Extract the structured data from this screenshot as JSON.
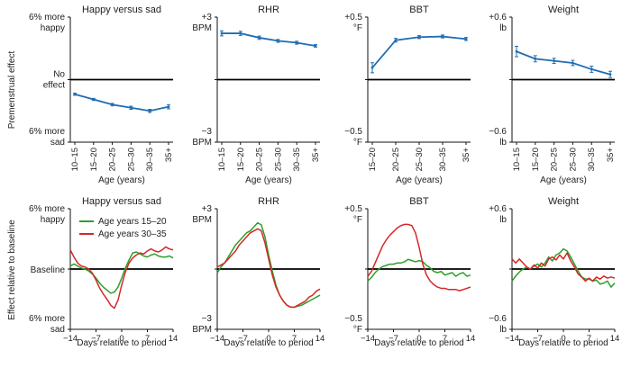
{
  "colors": {
    "line": "#1f6db3",
    "young": "#2ca02c",
    "old": "#d62728",
    "axis": "#111111",
    "baseline": "#000000"
  },
  "row_labels": {
    "top": "Premenstrual effect",
    "bottom": "Effect relative to baseline"
  },
  "chart_data": [
    {
      "id": "mood-age",
      "type": "line",
      "title": "Happy versus sad",
      "xlabel": "Age (years)",
      "categories": [
        "10–15",
        "15–20",
        "20–25",
        "25–30",
        "30–35",
        "35+"
      ],
      "values": [
        -1.4,
        -1.9,
        -2.4,
        -2.7,
        -3.0,
        -2.6
      ],
      "errors": [
        0.1,
        0.1,
        0.12,
        0.15,
        0.15,
        0.2
      ],
      "ylim": [
        -6,
        6
      ],
      "y_top": [
        "6% more",
        "happy"
      ],
      "y_mid": [
        "No",
        "effect"
      ],
      "y_bottom": [
        "6% more",
        "sad"
      ]
    },
    {
      "id": "rhr-age",
      "type": "line",
      "title": "RHR",
      "xlabel": "Age (years)",
      "categories": [
        "10–15",
        "15–20",
        "20–25",
        "25–30",
        "30–35",
        "35+"
      ],
      "values": [
        2.22,
        2.22,
        2.01,
        1.86,
        1.77,
        1.62
      ],
      "errors": [
        0.12,
        0.1,
        0.08,
        0.07,
        0.07,
        0.06
      ],
      "ylim": [
        -3,
        3
      ],
      "y_top": [
        "+3",
        "BPM"
      ],
      "y_bottom": [
        "−3",
        "BPM"
      ]
    },
    {
      "id": "bbt-age",
      "type": "line",
      "title": "BBT",
      "xlabel": "Age (years)",
      "categories": [
        "15–20",
        "20–25",
        "25–30",
        "30–35",
        "35+"
      ],
      "values": [
        0.095,
        0.315,
        0.34,
        0.345,
        0.325
      ],
      "errors": [
        0.04,
        0.015,
        0.012,
        0.012,
        0.012
      ],
      "ylim": [
        -0.5,
        0.5
      ],
      "y_top": [
        "+0.5",
        "°F"
      ],
      "y_bottom": [
        "−0.5",
        "°F"
      ]
    },
    {
      "id": "weight-age",
      "type": "line",
      "title": "Weight",
      "xlabel": "Age (years)",
      "categories": [
        "10–15",
        "15–20",
        "20–25",
        "25–30",
        "30–35",
        "35+"
      ],
      "values": [
        0.27,
        0.2,
        0.18,
        0.16,
        0.1,
        0.05
      ],
      "errors": [
        0.05,
        0.03,
        0.025,
        0.025,
        0.03,
        0.03
      ],
      "ylim": [
        -0.6,
        0.6
      ],
      "y_top": [
        "+0.6",
        "lb"
      ],
      "y_bottom": [
        "−0.6",
        "lb"
      ]
    },
    {
      "id": "mood-days",
      "type": "line",
      "title": "Happy versus sad",
      "xlabel": "Days relative to period",
      "x": [
        -14,
        -13,
        -12,
        -11,
        -10,
        -9,
        -8,
        -7,
        -6,
        -5,
        -4,
        -3,
        -2,
        -1,
        0,
        1,
        2,
        3,
        4,
        5,
        6,
        7,
        8,
        9,
        10,
        11,
        12,
        13,
        14
      ],
      "x_ticks": [
        -14,
        -7,
        0,
        7,
        14
      ],
      "x_tick_labels": [
        "−14",
        "−7",
        "0",
        "7",
        "14"
      ],
      "series": [
        {
          "name": "Age years 15–20",
          "key": "young",
          "values": [
            0.3,
            0.5,
            0.3,
            0.1,
            0.0,
            -0.2,
            -0.5,
            -0.9,
            -1.4,
            -1.8,
            -2.1,
            -2.4,
            -2.3,
            -1.8,
            -0.9,
            0.1,
            0.9,
            1.6,
            1.7,
            1.5,
            1.3,
            1.2,
            1.4,
            1.5,
            1.3,
            1.2,
            1.2,
            1.3,
            1.1
          ]
        },
        {
          "name": "Age years 30–35",
          "key": "old",
          "values": [
            1.9,
            1.2,
            0.6,
            0.3,
            0.2,
            0.0,
            -0.4,
            -1.1,
            -1.9,
            -2.5,
            -3.0,
            -3.6,
            -3.9,
            -3.1,
            -1.6,
            -0.3,
            0.6,
            1.1,
            1.4,
            1.6,
            1.5,
            1.8,
            2.0,
            1.8,
            1.7,
            1.9,
            2.2,
            2.0,
            1.9
          ]
        }
      ],
      "ylim": [
        -6,
        6
      ],
      "y_top": [
        "6% more",
        "happy"
      ],
      "y_mid": [
        "Baseline"
      ],
      "y_bottom": [
        "6% more",
        "sad"
      ],
      "legend": [
        "Age years 15–20",
        "Age years 30–35"
      ]
    },
    {
      "id": "rhr-days",
      "type": "line",
      "title": "RHR",
      "xlabel": "Days relative to period",
      "x": [
        -14,
        -13,
        -12,
        -11,
        -10,
        -9,
        -8,
        -7,
        -6,
        -5,
        -4,
        -3,
        -2,
        -1,
        0,
        1,
        2,
        3,
        4,
        5,
        6,
        7,
        8,
        9,
        10,
        11,
        12,
        13,
        14
      ],
      "x_ticks": [
        -14,
        -7,
        0,
        7,
        14
      ],
      "x_tick_labels": [
        "−14",
        "−7",
        "0",
        "7",
        "14"
      ],
      "series": [
        {
          "name": "Age years 15–20",
          "key": "young",
          "values": [
            -0.2,
            0.1,
            0.3,
            0.6,
            0.9,
            1.2,
            1.4,
            1.6,
            1.8,
            1.9,
            2.1,
            2.3,
            2.2,
            1.6,
            0.7,
            -0.1,
            -0.8,
            -1.3,
            -1.6,
            -1.8,
            -1.9,
            -1.9,
            -1.85,
            -1.8,
            -1.7,
            -1.6,
            -1.5,
            -1.4,
            -1.3
          ]
        },
        {
          "name": "Age years 30–35",
          "key": "old",
          "values": [
            0.1,
            0.2,
            0.3,
            0.5,
            0.7,
            0.9,
            1.2,
            1.4,
            1.6,
            1.8,
            1.9,
            2.0,
            1.9,
            1.3,
            0.5,
            -0.3,
            -0.9,
            -1.3,
            -1.6,
            -1.8,
            -1.9,
            -1.9,
            -1.8,
            -1.7,
            -1.6,
            -1.4,
            -1.3,
            -1.1,
            -1.0
          ]
        }
      ],
      "ylim": [
        -3,
        3
      ],
      "y_top": [
        "+3",
        "BPM"
      ],
      "y_bottom": [
        "−3",
        "BPM"
      ]
    },
    {
      "id": "bbt-days",
      "type": "line",
      "title": "BBT",
      "xlabel": "Days relative to period",
      "x": [
        -14,
        -13,
        -12,
        -11,
        -10,
        -9,
        -8,
        -7,
        -6,
        -5,
        -4,
        -3,
        -2,
        -1,
        0,
        1,
        2,
        3,
        4,
        5,
        6,
        7,
        8,
        9,
        10,
        11,
        12,
        13,
        14
      ],
      "x_ticks": [
        -14,
        -7,
        0,
        7,
        14
      ],
      "x_tick_labels": [
        "−14",
        "−7",
        "0",
        "7",
        "14"
      ],
      "series": [
        {
          "name": "Age years 15–20",
          "key": "young",
          "values": [
            -0.1,
            -0.07,
            -0.03,
            0.0,
            0.02,
            0.03,
            0.04,
            0.04,
            0.05,
            0.05,
            0.06,
            0.08,
            0.07,
            0.06,
            0.07,
            0.06,
            0.03,
            0.01,
            -0.02,
            -0.03,
            -0.02,
            -0.05,
            -0.04,
            -0.03,
            -0.06,
            -0.04,
            -0.03,
            -0.06,
            -0.05
          ]
        },
        {
          "name": "Age years 30–35",
          "key": "old",
          "values": [
            -0.06,
            -0.02,
            0.05,
            0.12,
            0.19,
            0.24,
            0.28,
            0.31,
            0.34,
            0.36,
            0.37,
            0.37,
            0.36,
            0.3,
            0.18,
            0.04,
            -0.05,
            -0.1,
            -0.13,
            -0.15,
            -0.16,
            -0.16,
            -0.17,
            -0.17,
            -0.17,
            -0.18,
            -0.17,
            -0.16,
            -0.15
          ]
        }
      ],
      "ylim": [
        -0.5,
        0.5
      ],
      "y_top": [
        "+0.5",
        "°F"
      ],
      "y_bottom": [
        "−0.5",
        "°F"
      ]
    },
    {
      "id": "weight-days",
      "type": "line",
      "title": "Weight",
      "xlabel": "Days relative to period",
      "x": [
        -14,
        -13,
        -12,
        -11,
        -10,
        -9,
        -8,
        -7,
        -6,
        -5,
        -4,
        -3,
        -2,
        -1,
        0,
        1,
        2,
        3,
        4,
        5,
        6,
        7,
        8,
        9,
        10,
        11,
        12,
        13,
        14
      ],
      "x_ticks": [
        -14,
        -7,
        0,
        7,
        14
      ],
      "x_tick_labels": [
        "−14",
        "−7",
        "0",
        "7",
        "14"
      ],
      "series": [
        {
          "name": "Age years 15–20",
          "key": "young",
          "values": [
            -0.12,
            -0.07,
            -0.03,
            0.0,
            0.02,
            0.0,
            0.03,
            0.05,
            0.02,
            0.06,
            0.12,
            0.08,
            0.14,
            0.16,
            0.2,
            0.18,
            0.12,
            0.05,
            -0.02,
            -0.08,
            -0.1,
            -0.1,
            -0.12,
            -0.11,
            -0.15,
            -0.14,
            -0.12,
            -0.18,
            -0.14
          ]
        },
        {
          "name": "Age years 30–35",
          "key": "old",
          "values": [
            0.1,
            0.06,
            0.1,
            0.06,
            0.02,
            0.0,
            0.04,
            0.01,
            0.06,
            0.03,
            0.1,
            0.12,
            0.09,
            0.14,
            0.1,
            0.16,
            0.08,
            0.02,
            -0.05,
            -0.08,
            -0.12,
            -0.09,
            -0.12,
            -0.08,
            -0.1,
            -0.07,
            -0.09,
            -0.08,
            -0.09
          ]
        }
      ],
      "ylim": [
        -0.6,
        0.6
      ],
      "y_top": [
        "+0.6",
        "lb"
      ],
      "y_bottom": [
        "−0.6",
        "lb"
      ]
    }
  ]
}
